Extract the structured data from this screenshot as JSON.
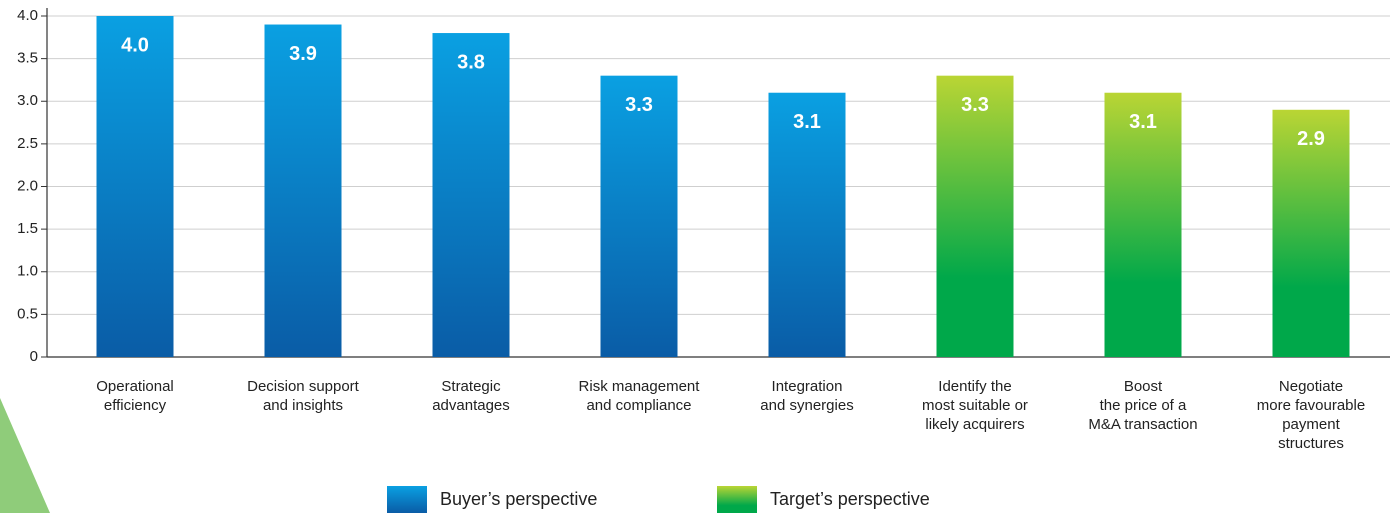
{
  "chart_data": {
    "type": "bar",
    "categories": [
      "Operational\nefficiency",
      "Decision support\nand insights",
      "Strategic\nadvantages",
      "Risk management\nand compliance",
      "Integration\nand synergies",
      "Identify the\nmost suitable or\nlikely acquirers",
      "Boost\nthe price of a\nM&A transaction",
      "Negotiate\nmore favourable\npayment\nstructures"
    ],
    "series": [
      {
        "name": "Buyer’s perspective",
        "color": [
          "#0aa0e2",
          "#0a5ca6"
        ],
        "values": [
          4.0,
          3.9,
          3.8,
          3.3,
          3.1,
          null,
          null,
          null
        ],
        "value_labels": [
          "4.0",
          "3.9",
          "3.8",
          "3.3",
          "3.1",
          null,
          null,
          null
        ]
      },
      {
        "name": "Target’s perspective",
        "color": [
          "#bad534",
          "#00a84a"
        ],
        "values": [
          null,
          null,
          null,
          null,
          null,
          3.3,
          3.1,
          2.9
        ],
        "value_labels": [
          null,
          null,
          null,
          null,
          null,
          "3.3",
          "3.1",
          "2.9"
        ]
      }
    ],
    "ylim": [
      0,
      4
    ],
    "yticks": [
      0,
      0.5,
      {
        "value": 1,
        "label": "1.0"
      },
      1.5,
      {
        "value": 2,
        "label": "2.0"
      },
      2.5,
      {
        "value": 3,
        "label": "3.0"
      },
      3.5,
      {
        "value": 4,
        "label": "4.0"
      }
    ],
    "grid": true
  }
}
